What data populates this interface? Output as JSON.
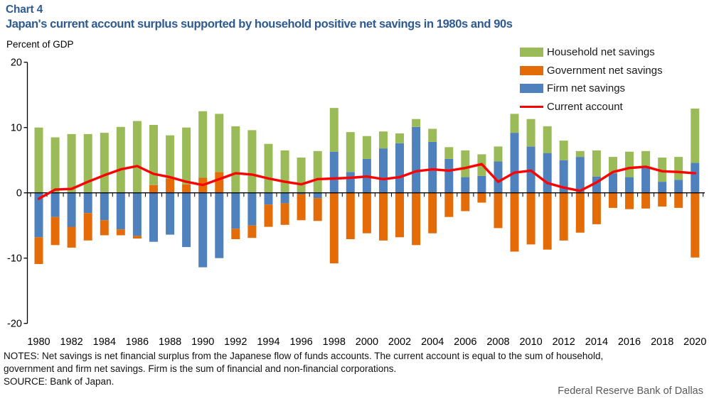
{
  "header": {
    "chart_label": "Chart 4",
    "title": "Japan's current account surplus supported by household positive net savings in 1980s and 90s",
    "axis_unit_label": "Percent of GDP"
  },
  "legend": [
    {
      "label": "Household net savings",
      "color": "#9BBB59",
      "marker": "swatch"
    },
    {
      "label": "Government net savings",
      "color": "#E36C09",
      "marker": "swatch"
    },
    {
      "label": "Firm net savings",
      "color": "#4F81BD",
      "marker": "swatch"
    },
    {
      "label": "Current account",
      "color": "#FF0000",
      "marker": "line"
    }
  ],
  "footer": {
    "notes_line1": "NOTES: Net savings is net financial surplus from the Japanese flow of funds accounts. The current account is equal to the sum of household,",
    "notes_line2": "government and firm net savings. Firm is the sum of financial and non-financial corporations.",
    "source": "SOURCE: Bank of Japan.",
    "attribution": "Federal Reserve Bank of Dallas"
  },
  "chart_data": {
    "type": "bar",
    "subtype": "stacked-bars-with-line-overlay",
    "title": "Japan's current account surplus supported by household positive net savings in 1980s and 90s",
    "xlabel": "",
    "ylabel": "Percent of GDP",
    "ylim": [
      -20,
      20
    ],
    "yticks": [
      20,
      10,
      0,
      -10,
      -20
    ],
    "xtick_step": 2,
    "grid": false,
    "legend_position": "top-right",
    "stack_order_from_axis": [
      "Firm net savings",
      "Government net savings",
      "Household net savings"
    ],
    "years": [
      1980,
      1981,
      1982,
      1983,
      1984,
      1985,
      1986,
      1987,
      1988,
      1989,
      1990,
      1991,
      1992,
      1993,
      1994,
      1995,
      1996,
      1997,
      1998,
      1999,
      2000,
      2001,
      2002,
      2003,
      2004,
      2005,
      2006,
      2007,
      2008,
      2009,
      2010,
      2011,
      2012,
      2013,
      2014,
      2015,
      2016,
      2017,
      2018,
      2019,
      2020
    ],
    "series": [
      {
        "name": "Household net savings",
        "color": "#9BBB59",
        "values": [
          10.0,
          8.5,
          9.0,
          9.0,
          9.2,
          10.1,
          11.0,
          9.2,
          6.6,
          8.7,
          10.2,
          8.9,
          10.2,
          9.6,
          7.5,
          6.5,
          5.4,
          6.4,
          6.7,
          6.1,
          3.5,
          2.6,
          1.5,
          1.2,
          2.0,
          1.8,
          4.1,
          3.3,
          2.3,
          2.9,
          4.2,
          4.1,
          3.0,
          0.9,
          4.0,
          2.5,
          3.9,
          2.6,
          3.7,
          3.5,
          8.3
        ]
      },
      {
        "name": "Government net savings",
        "color": "#E36C09",
        "values": [
          -4.1,
          -4.3,
          -3.2,
          -4.2,
          -2.3,
          -0.9,
          -0.4,
          1.2,
          2.2,
          1.3,
          2.3,
          3.2,
          -1.6,
          -1.9,
          -3.4,
          -3.3,
          -4.0,
          -3.5,
          -10.8,
          -7.1,
          -6.2,
          -7.3,
          -6.8,
          -8.0,
          -6.2,
          -3.7,
          -2.8,
          -1.5,
          -5.4,
          -9.0,
          -7.9,
          -8.7,
          -7.3,
          -6.1,
          -4.8,
          -2.3,
          -2.5,
          -2.4,
          -2.1,
          -2.3,
          -9.9
        ]
      },
      {
        "name": "Firm net savings",
        "color": "#4F81BD",
        "values": [
          -6.8,
          -3.7,
          -5.2,
          -3.1,
          -4.2,
          -5.6,
          -6.6,
          -7.5,
          -6.4,
          -8.3,
          -11.4,
          -10.0,
          -5.5,
          -5.0,
          -1.8,
          -1.6,
          -0.2,
          -0.8,
          6.3,
          3.2,
          5.2,
          6.8,
          7.6,
          10.1,
          7.8,
          5.2,
          2.4,
          2.6,
          4.8,
          9.2,
          7.1,
          6.1,
          5.0,
          5.5,
          2.5,
          3.0,
          2.4,
          3.8,
          1.7,
          2.0,
          4.6
        ]
      }
    ],
    "line_series": {
      "name": "Current account",
      "color": "#FF0000",
      "values": [
        -0.9,
        0.5,
        0.6,
        1.7,
        2.7,
        3.6,
        4.1,
        2.9,
        2.4,
        1.7,
        1.2,
        2.1,
        3.0,
        2.8,
        2.2,
        1.7,
        1.3,
        2.1,
        2.2,
        2.3,
        2.5,
        2.1,
        2.4,
        3.3,
        3.6,
        3.4,
        3.8,
        4.4,
        1.7,
        3.1,
        3.4,
        1.5,
        0.8,
        0.3,
        1.6,
        3.2,
        3.8,
        4.0,
        3.3,
        3.2,
        3.0
      ]
    }
  }
}
